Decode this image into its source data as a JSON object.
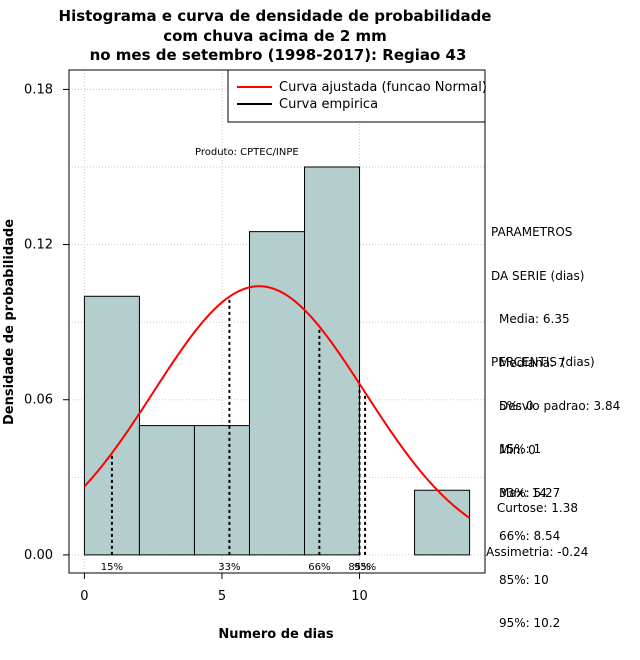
{
  "chart_data": {
    "type": "bar",
    "title_lines": [
      "Histograma e curva de densidade de probabilidade",
      "com chuva acima de 2 mm",
      "no mes de setembro (1998-2017): Regiao 43"
    ],
    "xlabel": "Numero de dias",
    "ylabel": "Densidade de probabilidade",
    "xlim": [
      -0.56,
      14.56
    ],
    "ylim": [
      -0.007,
      0.1875
    ],
    "x_ticks": [
      0,
      5,
      10
    ],
    "y_ticks": [
      0.0,
      0.06,
      0.12,
      0.18
    ],
    "y_tick_labels": [
      "0.00",
      "0.06",
      "0.12",
      "0.18"
    ],
    "grid": true,
    "bar_color": "#b4cdcd",
    "curve_color": "#ff0000",
    "bins": [
      {
        "x0": 0,
        "x1": 2,
        "density": 0.1
      },
      {
        "x0": 2,
        "x1": 4,
        "density": 0.05
      },
      {
        "x0": 4,
        "x1": 6,
        "density": 0.05
      },
      {
        "x0": 6,
        "x1": 8,
        "density": 0.125
      },
      {
        "x0": 8,
        "x1": 10,
        "density": 0.15
      },
      {
        "x0": 12,
        "x1": 14,
        "density": 0.025
      }
    ],
    "normal_fit": {
      "mean": 6.35,
      "sd": 3.84,
      "x_from": 0,
      "x_to": 14
    },
    "percentile_lines": [
      {
        "label": "15%",
        "x": 1
      },
      {
        "label": "33%",
        "x": 5.27
      },
      {
        "label": "66%",
        "x": 8.54
      },
      {
        "label": "85%",
        "x": 10
      },
      {
        "label": "95%",
        "x": 10.2
      }
    ],
    "legend": [
      {
        "label": "Curva ajustada (funcao Normal)",
        "color": "#ff0000"
      },
      {
        "label": "Curva empirica",
        "color": "#000000"
      }
    ],
    "legend_position": "top-right",
    "annotation": "Produto: CPTEC/INPE"
  },
  "side_panel": {
    "params_header": [
      "PARAMETROS",
      "DA SERIE (dias)"
    ],
    "params": [
      "Media: 6.35",
      "Mediana: 7",
      "Desvio padrao: 3.84",
      "Min: 0",
      "Max: 14"
    ],
    "percentiles_header": "PERCENTIS (dias)",
    "percentiles": [
      "5%: 0",
      "15%: 1",
      "33%: 5.27",
      "66%: 8.54",
      "85%: 10",
      "95%: 10.2"
    ],
    "curtose": "Curtose: 1.38",
    "assimetria": "Assimetria: -0.24"
  }
}
